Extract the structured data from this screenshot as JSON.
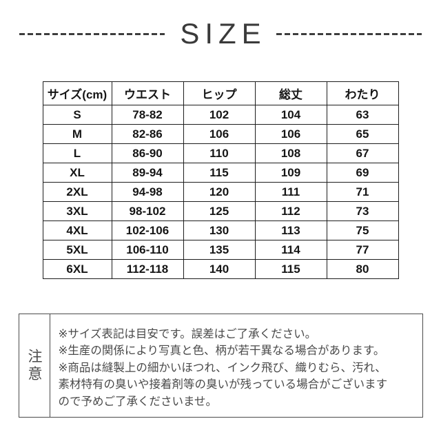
{
  "title": "SIZE",
  "chart_data": {
    "type": "table",
    "title": "SIZE",
    "columns": [
      "サイズ(cm)",
      "ウエスト",
      "ヒップ",
      "総丈",
      "わたり"
    ],
    "rows": [
      [
        "S",
        "78-82",
        "102",
        "104",
        "63"
      ],
      [
        "M",
        "82-86",
        "106",
        "106",
        "65"
      ],
      [
        "L",
        "86-90",
        "110",
        "108",
        "67"
      ],
      [
        "XL",
        "89-94",
        "115",
        "109",
        "69"
      ],
      [
        "2XL",
        "94-98",
        "120",
        "111",
        "71"
      ],
      [
        "3XL",
        "98-102",
        "125",
        "112",
        "73"
      ],
      [
        "4XL",
        "102-106",
        "130",
        "113",
        "75"
      ],
      [
        "5XL",
        "106-110",
        "135",
        "114",
        "77"
      ],
      [
        "6XL",
        "112-118",
        "140",
        "115",
        "80"
      ]
    ]
  },
  "notice": {
    "label": "注意",
    "lines": [
      "※サイズ表記は目安です。誤差はご了承ください。",
      "※生産の関係により写真と色、柄が若干異なる場合があります。",
      "※商品は縫製上の細かいほつれ、インク飛び、織りむら、汚れ、",
      "素材特有の臭いや接着剤等の臭いが残っている場合がございます",
      "ので予めご了承くださいませ。"
    ]
  },
  "colors": {
    "title": "#3a3a3a",
    "table_border": "#1c1c1c",
    "table_text": "#151515",
    "notice_border": "#4a4a4a",
    "notice_text": "#4a4a4a",
    "background": "#ffffff"
  }
}
